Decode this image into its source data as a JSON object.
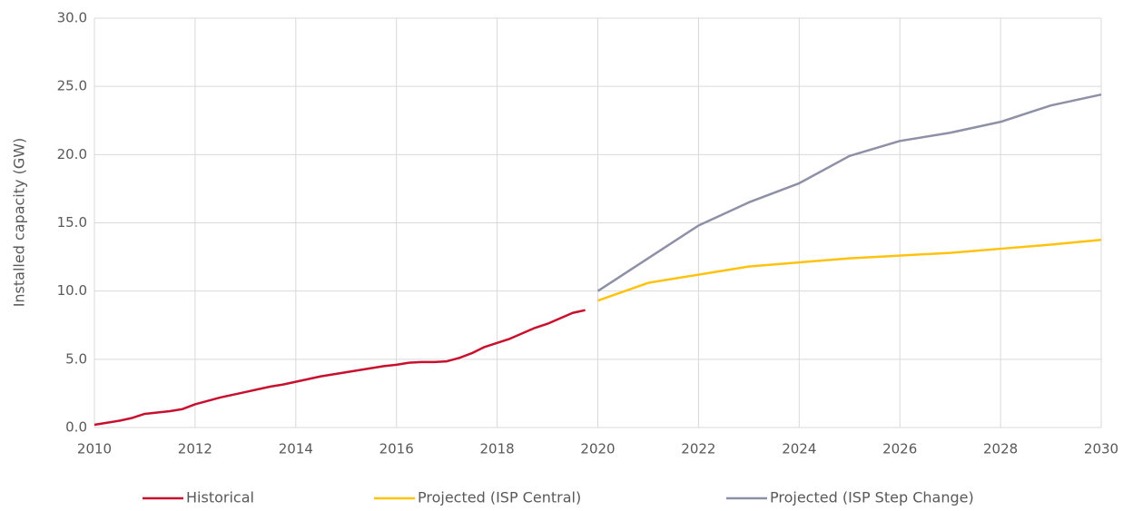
{
  "chart_data": {
    "type": "line",
    "ylabel": "Installed capacity (GW)",
    "x": [
      2010,
      2010.25,
      2010.5,
      2010.75,
      2011,
      2011.25,
      2011.5,
      2011.75,
      2012,
      2012.25,
      2012.5,
      2012.75,
      2013,
      2013.25,
      2013.5,
      2013.75,
      2014,
      2014.25,
      2014.5,
      2014.75,
      2015,
      2015.25,
      2015.5,
      2015.75,
      2016,
      2016.25,
      2016.5,
      2016.75,
      2017,
      2017.25,
      2017.5,
      2017.75,
      2018,
      2018.25,
      2018.5,
      2018.75,
      2019,
      2019.25,
      2019.5,
      2019.75,
      2020,
      2021,
      2022,
      2023,
      2024,
      2025,
      2026,
      2027,
      2028,
      2029,
      2030
    ],
    "series": [
      {
        "name": "Historical",
        "color": "#c8102e",
        "values": [
          0.2,
          0.35,
          0.5,
          0.7,
          1.0,
          1.1,
          1.2,
          1.35,
          1.7,
          1.95,
          2.2,
          2.4,
          2.6,
          2.8,
          3.0,
          3.15,
          3.35,
          3.55,
          3.75,
          3.9,
          4.05,
          4.2,
          4.35,
          4.5,
          4.6,
          4.75,
          4.8,
          4.8,
          4.85,
          5.1,
          5.45,
          5.9,
          6.2,
          6.5,
          6.9,
          7.3,
          7.6,
          8.0,
          8.4,
          8.6,
          null,
          null,
          null,
          null,
          null,
          null,
          null,
          null,
          null,
          null,
          null
        ]
      },
      {
        "name": "Projected (ISP Central)",
        "color": "#ffc20e",
        "values": [
          null,
          null,
          null,
          null,
          null,
          null,
          null,
          null,
          null,
          null,
          null,
          null,
          null,
          null,
          null,
          null,
          null,
          null,
          null,
          null,
          null,
          null,
          null,
          null,
          null,
          null,
          null,
          null,
          null,
          null,
          null,
          null,
          null,
          null,
          null,
          null,
          null,
          null,
          null,
          null,
          9.3,
          10.6,
          11.2,
          11.8,
          12.1,
          12.4,
          12.6,
          12.8,
          13.1,
          13.4,
          13.75
        ]
      },
      {
        "name": "Projected (ISP Step Change)",
        "color": "#8e90a6",
        "values": [
          null,
          null,
          null,
          null,
          null,
          null,
          null,
          null,
          null,
          null,
          null,
          null,
          null,
          null,
          null,
          null,
          null,
          null,
          null,
          null,
          null,
          null,
          null,
          null,
          null,
          null,
          null,
          null,
          null,
          null,
          null,
          null,
          null,
          null,
          null,
          null,
          null,
          null,
          null,
          null,
          10.0,
          12.4,
          14.8,
          16.5,
          17.9,
          19.9,
          21.0,
          21.6,
          22.4,
          23.6,
          24.4
        ]
      }
    ],
    "xlim": [
      2010,
      2030
    ],
    "xticks": [
      2010,
      2012,
      2014,
      2016,
      2018,
      2020,
      2022,
      2024,
      2026,
      2028,
      2030
    ],
    "ylim": [
      0,
      30
    ],
    "yticks": [
      {
        "value": 0,
        "label": "0.0"
      },
      {
        "value": 5,
        "label": "5.0"
      },
      {
        "value": 10,
        "label": "10.0"
      },
      {
        "value": 15,
        "label": "15.0"
      },
      {
        "value": 20,
        "label": "20.0"
      },
      {
        "value": 25,
        "label": "25.0"
      },
      {
        "value": 30,
        "label": "30.0"
      }
    ],
    "grid": true,
    "legend": "bottom"
  }
}
